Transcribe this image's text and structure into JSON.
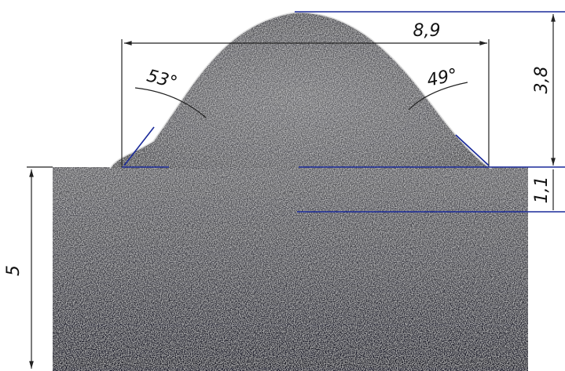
{
  "dimensions": {
    "width": "8,9",
    "height": "3,8",
    "penetration": "1,1",
    "thickness": "5",
    "left_angle": "53°",
    "right_angle": "49°"
  }
}
